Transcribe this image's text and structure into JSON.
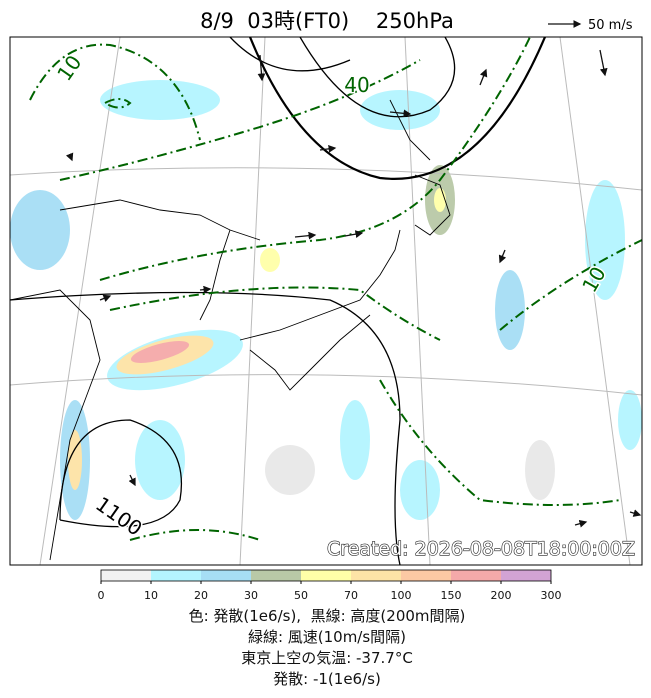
{
  "header": {
    "title": "8/9  03時(FT0)    250hPa",
    "scale_label": "50 m/s"
  },
  "map": {
    "created": "Created: 2026-08-08T18:00:00Z",
    "contour_labels": [
      "10",
      "40",
      "10",
      "1100"
    ]
  },
  "colorbar": {
    "ticks": [
      "0",
      "10",
      "20",
      "30",
      "50",
      "70",
      "100",
      "150",
      "200",
      "300"
    ],
    "colors": [
      "#f2f2f2",
      "#b4f5ff",
      "#a6def5",
      "#b9c9a7",
      "#ffffa8",
      "#fde3a6",
      "#fcc9a4",
      "#f5a9a9",
      "#d2a3d4"
    ]
  },
  "caption": [
    "色: 発散(1e6/s),  黒線: 高度(200m間隔)",
    "緑線: 風速(10m/s間隔)",
    "東京上空の気温: -37.7°C",
    "発散: -1(1e6/s)"
  ]
}
